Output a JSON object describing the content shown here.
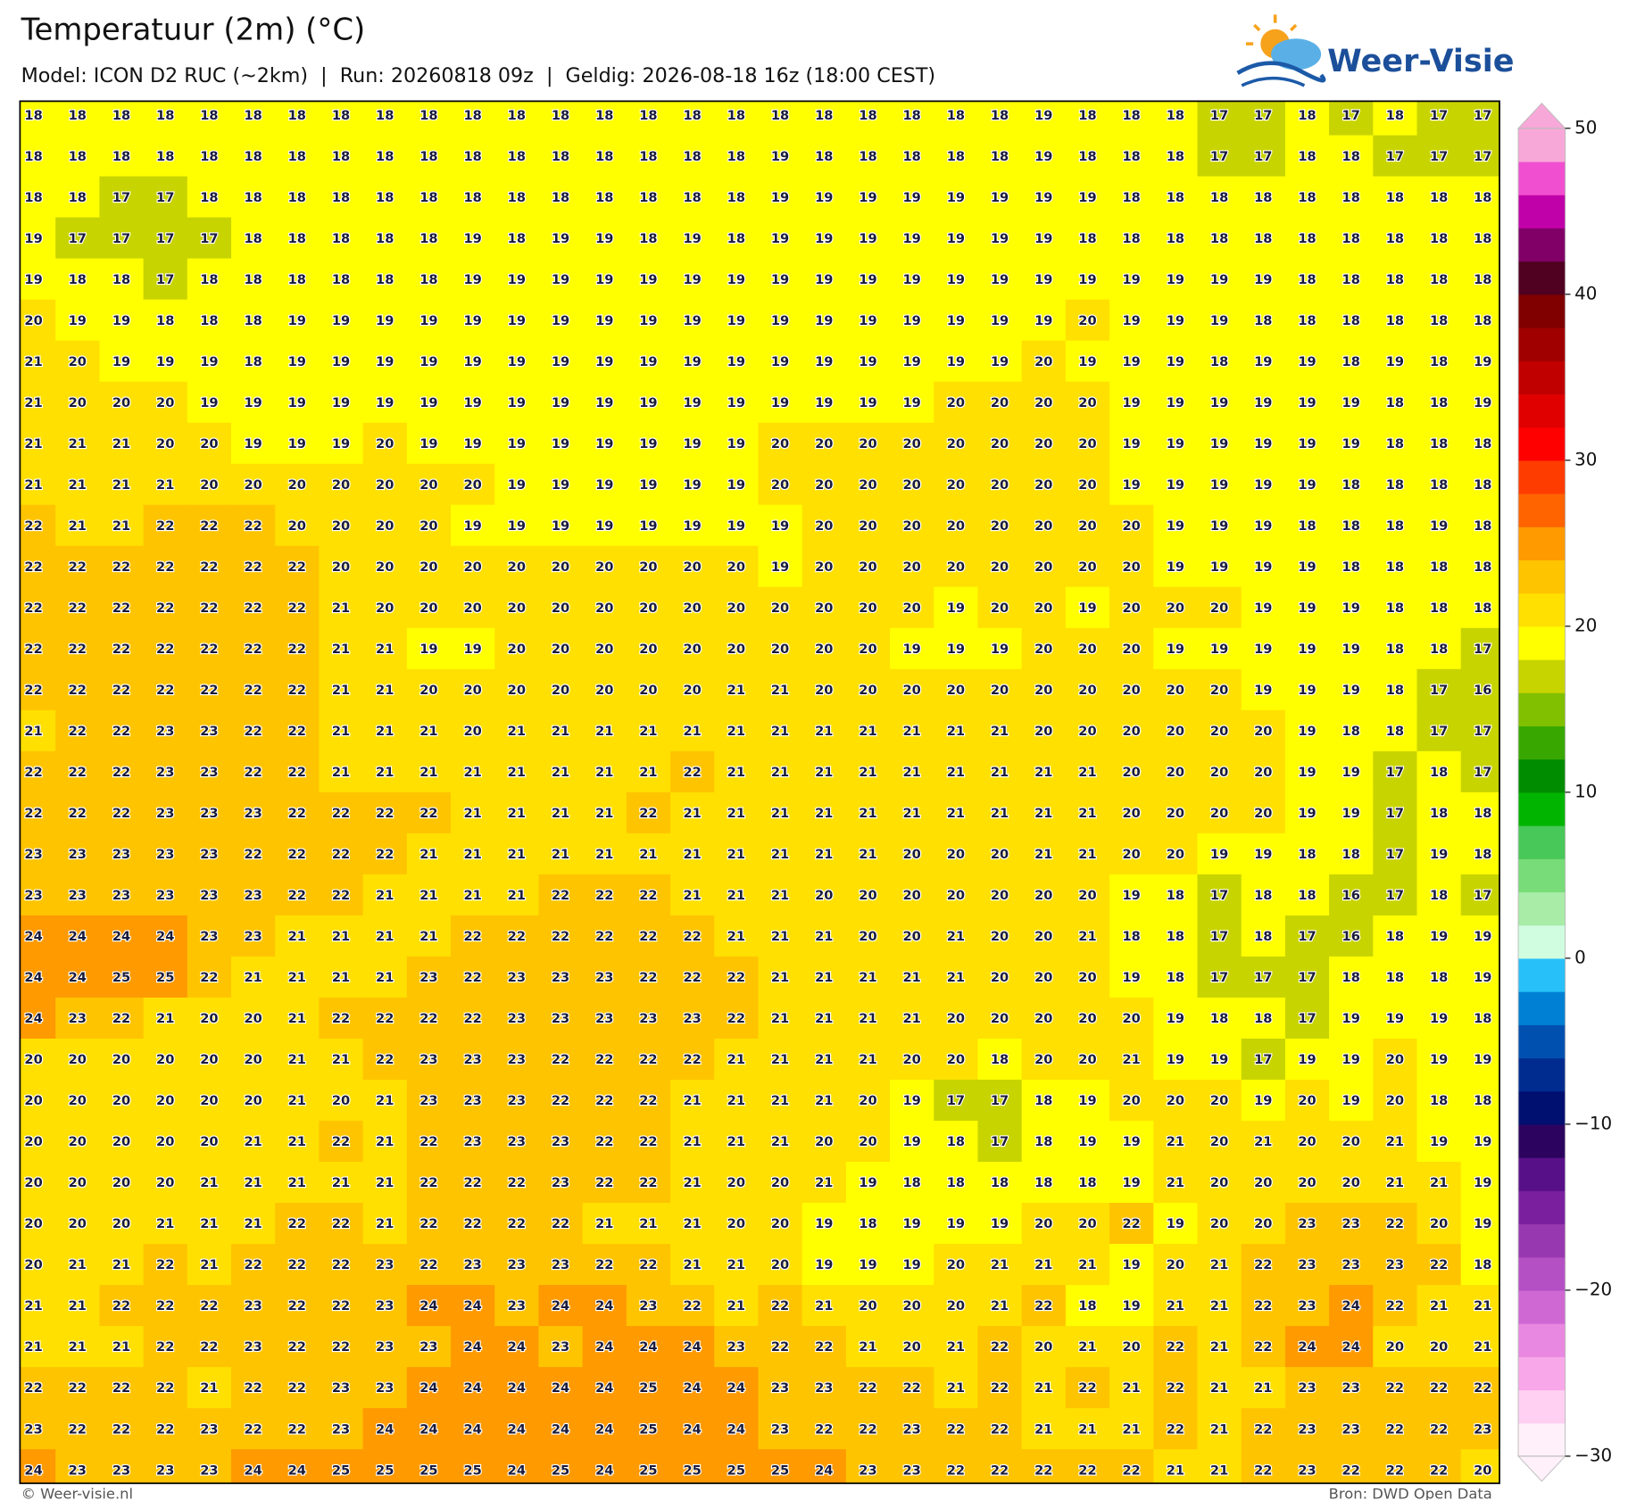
{
  "header": {
    "title": "Temperatuur (2m) (°C)",
    "subtitle": "Model: ICON D2 RUC (~2km)  |  Run: 20260818 09z  |  Geldig: 2026-08-18 16z (18:00 CEST)"
  },
  "logo": "Weer-Visie",
  "grid": [
    [
      18,
      18,
      18,
      18,
      18,
      18,
      18,
      18,
      18,
      18,
      18,
      18,
      18,
      18,
      18,
      18,
      18,
      18,
      18,
      18,
      18,
      18,
      18,
      19,
      18,
      18,
      18,
      17,
      17,
      18,
      17,
      18,
      17,
      17
    ],
    [
      18,
      18,
      18,
      18,
      18,
      18,
      18,
      18,
      18,
      18,
      18,
      18,
      18,
      18,
      18,
      18,
      18,
      19,
      18,
      18,
      18,
      18,
      18,
      19,
      18,
      18,
      18,
      17,
      17,
      18,
      18,
      17,
      17,
      17
    ],
    [
      18,
      18,
      17,
      17,
      18,
      18,
      18,
      18,
      18,
      18,
      18,
      18,
      18,
      18,
      18,
      18,
      18,
      19,
      19,
      19,
      19,
      19,
      19,
      19,
      19,
      18,
      18,
      18,
      18,
      18,
      18,
      18,
      18,
      18
    ],
    [
      19,
      17,
      17,
      17,
      17,
      18,
      18,
      18,
      18,
      18,
      19,
      18,
      19,
      19,
      18,
      19,
      18,
      19,
      19,
      19,
      19,
      19,
      19,
      19,
      18,
      18,
      18,
      18,
      18,
      18,
      18,
      18,
      18,
      18
    ],
    [
      19,
      18,
      18,
      17,
      18,
      18,
      18,
      18,
      18,
      18,
      19,
      19,
      19,
      19,
      19,
      19,
      19,
      19,
      19,
      19,
      19,
      19,
      19,
      19,
      19,
      19,
      19,
      19,
      19,
      18,
      18,
      18,
      18,
      18
    ],
    [
      20,
      19,
      19,
      18,
      18,
      18,
      19,
      19,
      19,
      19,
      19,
      19,
      19,
      19,
      19,
      19,
      19,
      19,
      19,
      19,
      19,
      19,
      19,
      19,
      20,
      19,
      19,
      19,
      18,
      18,
      18,
      18,
      18,
      18
    ],
    [
      21,
      20,
      19,
      19,
      19,
      18,
      19,
      19,
      19,
      19,
      19,
      19,
      19,
      19,
      19,
      19,
      19,
      19,
      19,
      19,
      19,
      19,
      19,
      20,
      19,
      19,
      19,
      18,
      19,
      19,
      18,
      19,
      18,
      19
    ],
    [
      21,
      20,
      20,
      20,
      19,
      19,
      19,
      19,
      19,
      19,
      19,
      19,
      19,
      19,
      19,
      19,
      19,
      19,
      19,
      19,
      19,
      20,
      20,
      20,
      20,
      19,
      19,
      19,
      19,
      19,
      19,
      18,
      18,
      19
    ],
    [
      21,
      21,
      21,
      20,
      20,
      19,
      19,
      19,
      20,
      19,
      19,
      19,
      19,
      19,
      19,
      19,
      19,
      20,
      20,
      20,
      20,
      20,
      20,
      20,
      20,
      19,
      19,
      19,
      19,
      19,
      19,
      18,
      18,
      18
    ],
    [
      21,
      21,
      21,
      21,
      20,
      20,
      20,
      20,
      20,
      20,
      20,
      19,
      19,
      19,
      19,
      19,
      19,
      20,
      20,
      20,
      20,
      20,
      20,
      20,
      20,
      19,
      19,
      19,
      19,
      19,
      18,
      18,
      18,
      18
    ],
    [
      22,
      21,
      21,
      22,
      22,
      22,
      20,
      20,
      20,
      20,
      19,
      19,
      19,
      19,
      19,
      19,
      19,
      19,
      20,
      20,
      20,
      20,
      20,
      20,
      20,
      20,
      19,
      19,
      19,
      18,
      18,
      18,
      19,
      18
    ],
    [
      22,
      22,
      22,
      22,
      22,
      22,
      22,
      20,
      20,
      20,
      20,
      20,
      20,
      20,
      20,
      20,
      20,
      19,
      20,
      20,
      20,
      20,
      20,
      20,
      20,
      20,
      19,
      19,
      19,
      19,
      18,
      18,
      18,
      18
    ],
    [
      22,
      22,
      22,
      22,
      22,
      22,
      22,
      21,
      20,
      20,
      20,
      20,
      20,
      20,
      20,
      20,
      20,
      20,
      20,
      20,
      20,
      19,
      20,
      20,
      19,
      20,
      20,
      20,
      19,
      19,
      19,
      18,
      18,
      18
    ],
    [
      22,
      22,
      22,
      22,
      22,
      22,
      22,
      21,
      21,
      19,
      19,
      20,
      20,
      20,
      20,
      20,
      20,
      20,
      20,
      20,
      19,
      19,
      19,
      20,
      20,
      20,
      19,
      19,
      19,
      19,
      19,
      18,
      18,
      17
    ],
    [
      22,
      22,
      22,
      22,
      22,
      22,
      22,
      21,
      21,
      20,
      20,
      20,
      20,
      20,
      20,
      20,
      21,
      21,
      20,
      20,
      20,
      20,
      20,
      20,
      20,
      20,
      20,
      20,
      19,
      19,
      19,
      18,
      17,
      16
    ],
    [
      21,
      22,
      22,
      23,
      23,
      22,
      22,
      21,
      21,
      21,
      20,
      21,
      21,
      21,
      21,
      21,
      21,
      21,
      21,
      21,
      21,
      21,
      21,
      20,
      20,
      20,
      20,
      20,
      20,
      19,
      18,
      18,
      17,
      17
    ],
    [
      22,
      22,
      22,
      23,
      23,
      22,
      22,
      21,
      21,
      21,
      21,
      21,
      21,
      21,
      21,
      22,
      21,
      21,
      21,
      21,
      21,
      21,
      21,
      21,
      21,
      20,
      20,
      20,
      20,
      19,
      19,
      17,
      18,
      17
    ],
    [
      22,
      22,
      22,
      23,
      23,
      23,
      22,
      22,
      22,
      22,
      21,
      21,
      21,
      21,
      22,
      21,
      21,
      21,
      21,
      21,
      21,
      21,
      21,
      21,
      21,
      20,
      20,
      20,
      20,
      19,
      19,
      17,
      18,
      18
    ],
    [
      23,
      23,
      23,
      23,
      23,
      22,
      22,
      22,
      22,
      21,
      21,
      21,
      21,
      21,
      21,
      21,
      21,
      21,
      21,
      21,
      20,
      20,
      20,
      21,
      21,
      20,
      20,
      19,
      19,
      18,
      18,
      17,
      19,
      18
    ],
    [
      23,
      23,
      23,
      23,
      23,
      23,
      22,
      22,
      21,
      21,
      21,
      21,
      22,
      22,
      22,
      21,
      21,
      21,
      20,
      20,
      20,
      20,
      20,
      20,
      20,
      19,
      18,
      17,
      18,
      18,
      16,
      17,
      18,
      17
    ],
    [
      24,
      24,
      24,
      24,
      23,
      23,
      21,
      21,
      21,
      21,
      22,
      22,
      22,
      22,
      22,
      22,
      21,
      21,
      21,
      20,
      20,
      21,
      20,
      20,
      21,
      18,
      18,
      17,
      18,
      17,
      16,
      18,
      19,
      19
    ],
    [
      24,
      24,
      25,
      25,
      22,
      21,
      21,
      21,
      21,
      23,
      22,
      23,
      23,
      23,
      22,
      22,
      22,
      21,
      21,
      21,
      21,
      21,
      20,
      20,
      20,
      19,
      18,
      17,
      17,
      17,
      18,
      18,
      18,
      19
    ],
    [
      24,
      23,
      22,
      21,
      20,
      20,
      21,
      22,
      22,
      22,
      22,
      23,
      23,
      23,
      23,
      23,
      22,
      21,
      21,
      21,
      21,
      20,
      20,
      20,
      20,
      20,
      19,
      18,
      18,
      17,
      19,
      19,
      19,
      18
    ],
    [
      20,
      20,
      20,
      20,
      20,
      20,
      21,
      21,
      22,
      23,
      23,
      23,
      22,
      22,
      22,
      22,
      21,
      21,
      21,
      21,
      20,
      20,
      18,
      20,
      20,
      21,
      19,
      19,
      17,
      19,
      19,
      20,
      19,
      19
    ],
    [
      20,
      20,
      20,
      20,
      20,
      20,
      21,
      20,
      21,
      23,
      23,
      23,
      22,
      22,
      22,
      21,
      21,
      21,
      21,
      20,
      19,
      17,
      17,
      18,
      19,
      20,
      20,
      20,
      19,
      20,
      19,
      20,
      18,
      18
    ],
    [
      20,
      20,
      20,
      20,
      20,
      21,
      21,
      22,
      21,
      22,
      23,
      23,
      23,
      22,
      22,
      21,
      21,
      21,
      20,
      20,
      19,
      18,
      17,
      18,
      19,
      19,
      21,
      20,
      21,
      20,
      20,
      21,
      19,
      19
    ],
    [
      20,
      20,
      20,
      20,
      21,
      21,
      21,
      21,
      21,
      22,
      22,
      22,
      23,
      22,
      22,
      21,
      20,
      20,
      21,
      19,
      18,
      18,
      18,
      18,
      18,
      19,
      21,
      20,
      20,
      20,
      20,
      21,
      21,
      19
    ],
    [
      20,
      20,
      20,
      21,
      21,
      21,
      22,
      22,
      21,
      22,
      22,
      22,
      22,
      21,
      21,
      21,
      20,
      20,
      19,
      18,
      19,
      19,
      19,
      20,
      20,
      22,
      19,
      20,
      20,
      23,
      23,
      22,
      20,
      19
    ],
    [
      20,
      21,
      21,
      22,
      21,
      22,
      22,
      22,
      23,
      22,
      23,
      23,
      23,
      22,
      22,
      21,
      21,
      20,
      19,
      19,
      19,
      20,
      21,
      21,
      21,
      19,
      20,
      21,
      22,
      23,
      23,
      23,
      22,
      18
    ],
    [
      21,
      21,
      22,
      22,
      22,
      23,
      22,
      22,
      23,
      24,
      24,
      23,
      24,
      24,
      23,
      22,
      21,
      22,
      21,
      20,
      20,
      20,
      21,
      22,
      18,
      19,
      21,
      21,
      22,
      23,
      24,
      22,
      21,
      21
    ],
    [
      21,
      21,
      21,
      22,
      22,
      23,
      22,
      22,
      23,
      23,
      24,
      24,
      23,
      24,
      24,
      24,
      23,
      22,
      22,
      21,
      20,
      21,
      22,
      20,
      21,
      20,
      22,
      21,
      22,
      24,
      24,
      20,
      20,
      21
    ],
    [
      22,
      22,
      22,
      22,
      21,
      22,
      22,
      23,
      23,
      24,
      24,
      24,
      24,
      24,
      25,
      24,
      24,
      23,
      23,
      22,
      22,
      21,
      22,
      21,
      22,
      21,
      22,
      21,
      21,
      23,
      23,
      22,
      22,
      22
    ],
    [
      23,
      22,
      22,
      22,
      23,
      22,
      22,
      23,
      24,
      24,
      24,
      24,
      24,
      24,
      25,
      24,
      24,
      23,
      22,
      22,
      23,
      22,
      22,
      21,
      21,
      21,
      22,
      21,
      22,
      23,
      23,
      22,
      22,
      23
    ],
    [
      24,
      23,
      23,
      23,
      23,
      24,
      24,
      25,
      25,
      25,
      25,
      24,
      25,
      24,
      25,
      25,
      25,
      25,
      24,
      23,
      23,
      22,
      22,
      22,
      22,
      22,
      21,
      21,
      22,
      23,
      22,
      22,
      22,
      20
    ]
  ],
  "colorbar": {
    "lim": [
      -30,
      50
    ],
    "ticks": [
      50,
      40,
      30,
      20,
      10,
      0,
      {
        "value": -10,
        "label": "−10"
      },
      {
        "value": -20,
        "label": "−20"
      },
      {
        "value": -30,
        "label": "−30"
      }
    ],
    "colors": [
      "#fff0fa",
      "#ffd0f2",
      "#f8a8e8",
      "#e888e0",
      "#d068d4",
      "#b450c4",
      "#9838b0",
      "#7a209e",
      "#581088",
      "#2c0460",
      "#001070",
      "#002c90",
      "#0050b0",
      "#0080d4",
      "#28c0f8",
      "#d0fce0",
      "#a8eca8",
      "#78dc78",
      "#48c858",
      "#00b400",
      "#008c00",
      "#38a800",
      "#80c000",
      "#c8d400",
      "#ffff00",
      "#ffe000",
      "#ffc400",
      "#ff9a00",
      "#ff6400",
      "#ff3c00",
      "#ff0000",
      "#e00000",
      "#c00000",
      "#a00000",
      "#800000",
      "#500020",
      "#800068",
      "#c000a8",
      "#f050d0",
      "#f8a8d8"
    ]
  },
  "footer": {
    "left": "© Weer-visie.nl",
    "right": "Bron: DWD Open Data"
  }
}
